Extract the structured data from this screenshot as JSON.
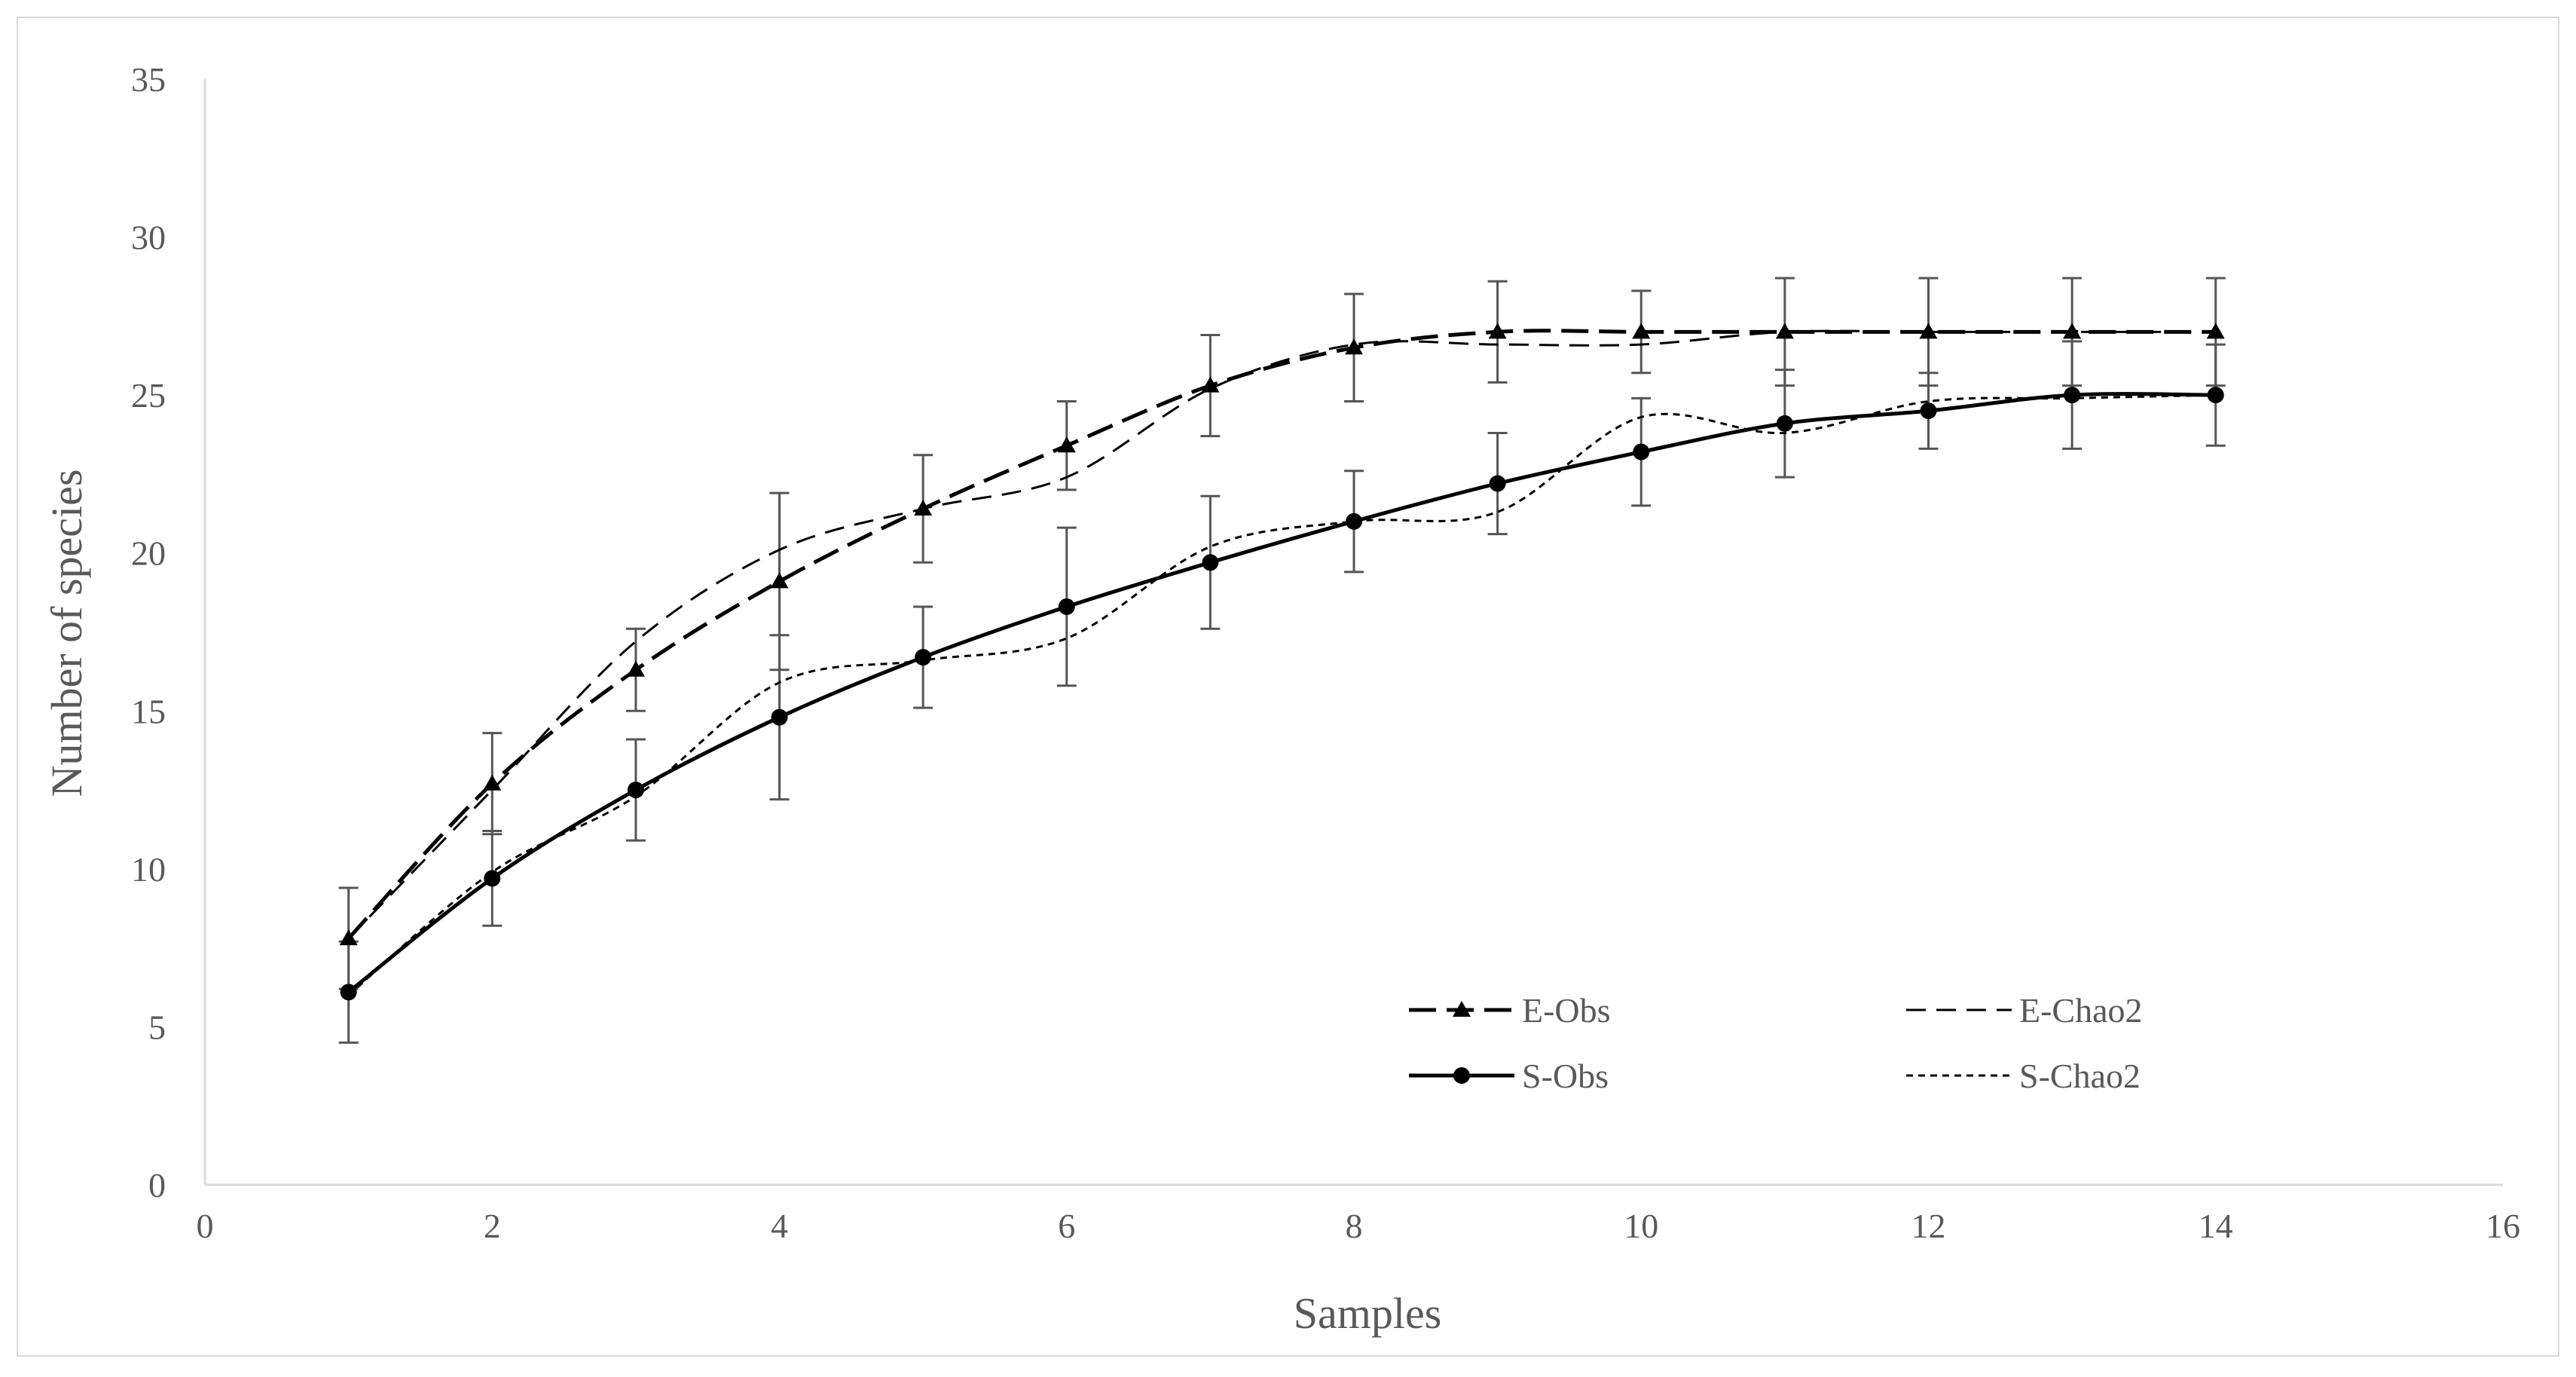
{
  "chart_data": {
    "type": "line",
    "title": "",
    "xlabel": "Samples",
    "ylabel": "Number of species",
    "xlim": [
      0,
      16
    ],
    "ylim": [
      0,
      35
    ],
    "xticks": [
      0,
      2,
      4,
      6,
      8,
      10,
      12,
      14,
      16
    ],
    "yticks": [
      0,
      5,
      10,
      15,
      20,
      25,
      30,
      35
    ],
    "grid": false,
    "legend_position": "bottom-right",
    "series": [
      {
        "name": "E-Obs",
        "marker": "triangle",
        "line": "long-dash",
        "x": [
          1,
          2,
          3,
          4,
          5,
          6,
          7,
          8,
          9,
          10,
          11,
          12,
          13,
          14
        ],
        "values": [
          7.8,
          12.7,
          16.3,
          19.1,
          21.4,
          23.4,
          25.3,
          26.5,
          27.0,
          27.0,
          27.0,
          27.0,
          27.0,
          27.0
        ],
        "error": [
          1.6,
          1.6,
          1.3,
          2.8,
          1.7,
          1.4,
          1.6,
          1.7,
          1.6,
          1.3,
          1.7,
          1.7,
          1.7,
          1.7
        ]
      },
      {
        "name": "E-Chao2",
        "marker": "none",
        "line": "dash",
        "x": [
          1,
          2,
          3,
          4,
          5,
          6,
          7,
          8,
          9,
          10,
          11,
          12,
          13,
          14
        ],
        "values": [
          7.8,
          12.5,
          17.2,
          20.1,
          21.4,
          22.4,
          25.2,
          26.6,
          26.6,
          26.6,
          27.0,
          27.0,
          27.0,
          27.0
        ],
        "error": []
      },
      {
        "name": "S-Obs",
        "marker": "circle",
        "line": "solid",
        "x": [
          1,
          2,
          3,
          4,
          5,
          6,
          7,
          8,
          9,
          10,
          11,
          12,
          13,
          14
        ],
        "values": [
          6.1,
          9.7,
          12.5,
          14.8,
          16.7,
          18.3,
          19.7,
          21.0,
          22.2,
          23.2,
          24.1,
          24.5,
          25.0,
          25.0
        ],
        "error": [
          1.6,
          1.5,
          1.6,
          2.6,
          1.6,
          2.5,
          2.1,
          1.6,
          1.6,
          1.7,
          1.7,
          1.2,
          1.7,
          1.6
        ]
      },
      {
        "name": "S-Chao2",
        "marker": "none",
        "line": "short-dash",
        "x": [
          1,
          2,
          3,
          4,
          5,
          6,
          7,
          8,
          9,
          10,
          11,
          12,
          13,
          14
        ],
        "values": [
          6.0,
          9.9,
          12.3,
          15.9,
          16.6,
          17.3,
          20.2,
          21.0,
          21.3,
          24.3,
          23.8,
          24.8,
          24.9,
          25.0
        ],
        "error": []
      }
    ],
    "colors": {
      "axis": "#d9d9d9",
      "text": "#595959",
      "line": "#000000",
      "errorbar": "#555555"
    }
  }
}
